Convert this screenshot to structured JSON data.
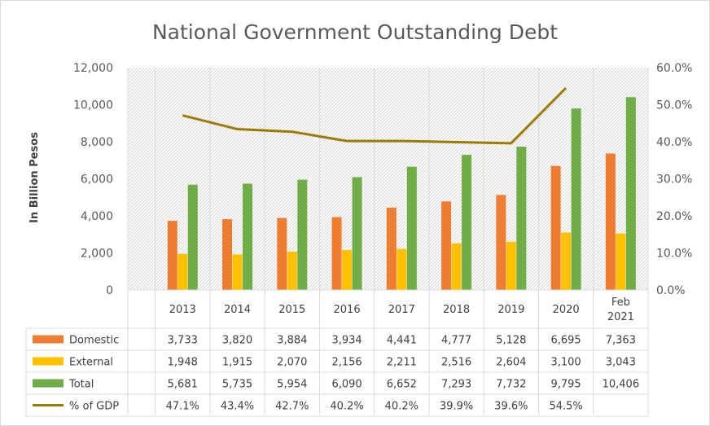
{
  "chart_data": {
    "type": "bar",
    "title": "National Government Outstanding Debt",
    "ylabel": "In Billion Pesos",
    "ylim": [
      0,
      12000
    ],
    "y_ticks": [
      "0",
      "2,000",
      "4,000",
      "6,000",
      "8,000",
      "10,000",
      "12,000"
    ],
    "y2lim": [
      0,
      60
    ],
    "y2_ticks": [
      "0.0%",
      "10.0%",
      "20.0%",
      "30.0%",
      "40.0%",
      "50.0%",
      "60.0%"
    ],
    "categories": [
      "2013",
      "2014",
      "2015",
      "2016",
      "2017",
      "2018",
      "2019",
      "2020",
      "Feb 2021"
    ],
    "category_lines": [
      [
        "2013"
      ],
      [
        "2014"
      ],
      [
        "2015"
      ],
      [
        "2016"
      ],
      [
        "2017"
      ],
      [
        "2018"
      ],
      [
        "2019"
      ],
      [
        "2020"
      ],
      [
        "Feb",
        "2021"
      ]
    ],
    "series": [
      {
        "name": "Domestic",
        "type": "bar",
        "color": "#ED7D31",
        "values": [
          3733,
          3820,
          3884,
          3934,
          4441,
          4777,
          5128,
          6695,
          7363
        ],
        "labels": [
          "3,733",
          "3,820",
          "3,884",
          "3,934",
          "4,441",
          "4,777",
          "5,128",
          "6,695",
          "7,363"
        ]
      },
      {
        "name": "External",
        "type": "bar",
        "color": "#FFC000",
        "values": [
          1948,
          1915,
          2070,
          2156,
          2211,
          2516,
          2604,
          3100,
          3043
        ],
        "labels": [
          "1,948",
          "1,915",
          "2,070",
          "2,156",
          "2,211",
          "2,516",
          "2,604",
          "3,100",
          "3,043"
        ]
      },
      {
        "name": "Total",
        "type": "bar",
        "color": "#70AD47",
        "values": [
          5681,
          5735,
          5954,
          6090,
          6652,
          7293,
          7732,
          9795,
          10406
        ],
        "labels": [
          "5,681",
          "5,735",
          "5,954",
          "6,090",
          "6,652",
          "7,293",
          "7,732",
          "9,795",
          "10,406"
        ]
      },
      {
        "name": "% of GDP",
        "type": "line",
        "axis": "secondary",
        "color": "#9C7A00",
        "values": [
          47.1,
          43.4,
          42.7,
          40.2,
          40.2,
          39.9,
          39.6,
          54.5,
          null
        ],
        "labels": [
          "47.1%",
          "43.4%",
          "42.7%",
          "40.2%",
          "40.2%",
          "39.9%",
          "39.6%",
          "54.5%",
          ""
        ]
      }
    ],
    "data_table": true,
    "grid": false
  }
}
